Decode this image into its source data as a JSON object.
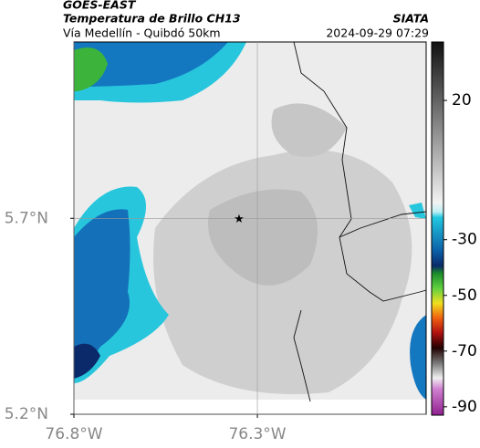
{
  "header": {
    "title": "GOES-EAST",
    "subtitle": "Temperatura de Brillo CH13",
    "region": "Vía Medellín - Quibdó 50km",
    "source": "SIATA",
    "datetime": "2024-09-29 07:29"
  },
  "chart_data": {
    "type": "map",
    "xlim": [
      -76.8,
      -75.84
    ],
    "ylim": [
      5.2,
      6.15
    ],
    "xticks": [
      {
        "value": -76.8,
        "label": "76.8°W"
      },
      {
        "value": -76.3,
        "label": "76.3°W"
      }
    ],
    "yticks": [
      {
        "value": 5.2,
        "label": "5.2°N"
      },
      {
        "value": 5.7,
        "label": "5.7°N"
      }
    ],
    "grid": true,
    "marker": {
      "x": -76.35,
      "y": 5.7
    },
    "colorbar": {
      "lim": [
        -93,
        41
      ],
      "ticks": [
        20,
        -30,
        -50,
        -70,
        -90
      ]
    }
  }
}
